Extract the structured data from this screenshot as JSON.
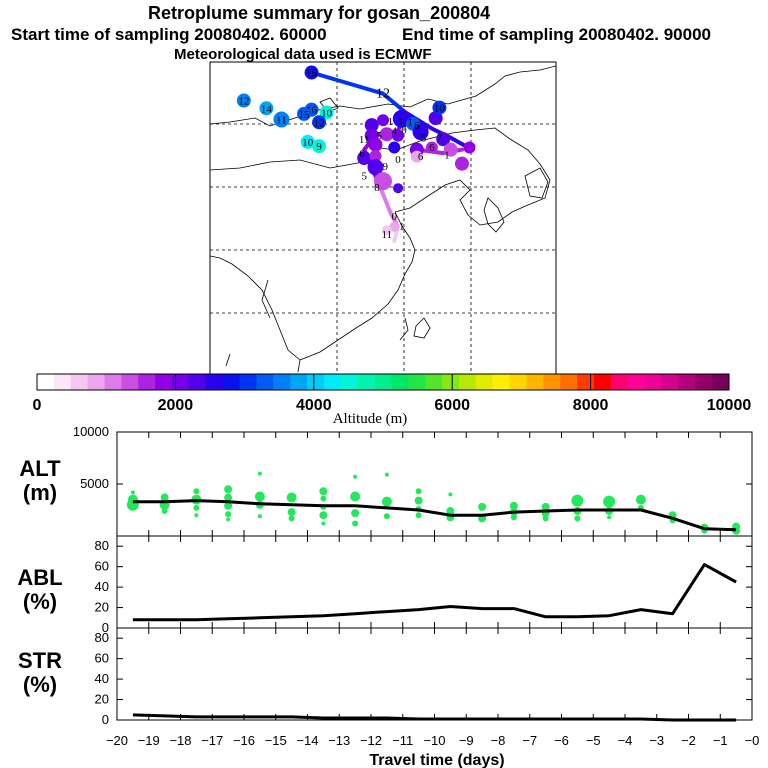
{
  "header": {
    "title": "Retroplume summary for gosan_200804",
    "start_label": "Start time of sampling 20080402. 60000",
    "end_label": "End time of sampling 20080402. 90000",
    "met_label": "Meteorological data used is ECMWF"
  },
  "colorbar": {
    "tick_labels": [
      "0",
      "2000",
      "4000",
      "6000",
      "8000",
      "10000"
    ],
    "title": "Altitude (m)",
    "range": [
      0,
      10000
    ],
    "colors": [
      "#ffffff",
      "#fde6f8",
      "#f5c8f2",
      "#eba6ee",
      "#dc7ce8",
      "#c84ee4",
      "#ae22e2",
      "#9200e6",
      "#7400e8",
      "#5000ea",
      "#2a00ee",
      "#0a10f2",
      "#0034f4",
      "#005af4",
      "#0080f4",
      "#00a6f6",
      "#00ccf8",
      "#00eaf8",
      "#00f6d8",
      "#00f4b0",
      "#00ee8c",
      "#00e868",
      "#20e646",
      "#52e62a",
      "#84e814",
      "#b6ea06",
      "#e2ec00",
      "#fff000",
      "#ffd400",
      "#ffb400",
      "#ff9400",
      "#ff6e00",
      "#ff3c00",
      "#ff0000",
      "#ff0070",
      "#ff0096",
      "#f0009a",
      "#d4008e",
      "#b4007c",
      "#940068",
      "#74005a"
    ]
  },
  "map": {
    "labels": [
      {
        "text": "12",
        "lon": 95.5,
        "lat": 53.5,
        "alt": 3600
      },
      {
        "text": "14",
        "lon": 98.5,
        "lat": 52.4,
        "alt": 3800
      },
      {
        "text": "16",
        "lon": 104.5,
        "lat": 52.2,
        "alt": 3200
      },
      {
        "text": "15",
        "lon": 103.5,
        "lat": 51.6,
        "alt": 3300
      },
      {
        "text": "10",
        "lon": 106.5,
        "lat": 51.8,
        "alt": 4500
      },
      {
        "text": "11",
        "lon": 100.5,
        "lat": 50.8,
        "alt": 3500
      },
      {
        "text": "12",
        "lon": 105.5,
        "lat": 50.4,
        "alt": 3000
      },
      {
        "text": "10",
        "lon": 104.0,
        "lat": 47.6,
        "alt": 4200
      },
      {
        "text": "9",
        "lon": 105.5,
        "lat": 47.0,
        "alt": 4600
      },
      {
        "text": "16",
        "lon": 104.5,
        "lat": 57.5,
        "alt": 2900
      },
      {
        "text": "12",
        "lon": 114.0,
        "lat": 54.5,
        "alt": 0
      },
      {
        "text": "10",
        "lon": 121.5,
        "lat": 52.5,
        "alt": 3000
      }
    ],
    "paths": [
      {
        "alt": 3000,
        "points": [
          [
            104.5,
            57.5
          ],
          [
            114.0,
            54.5
          ],
          [
            117.0,
            51.8
          ]
        ]
      },
      {
        "alt": 2500,
        "points": [
          [
            117.0,
            51.8
          ],
          [
            120.5,
            49.5
          ],
          [
            123.0,
            48.2
          ],
          [
            125.0,
            47.0
          ]
        ]
      },
      {
        "alt": 1800,
        "points": [
          [
            117.0,
            51.8
          ],
          [
            116.0,
            49.2
          ],
          [
            113.0,
            48.5
          ],
          [
            111.5,
            46.5
          ],
          [
            112.5,
            44.0
          ],
          [
            113.5,
            41.5
          ]
        ]
      },
      {
        "alt": 1200,
        "points": [
          [
            113.5,
            41.5
          ],
          [
            115.0,
            37.5
          ],
          [
            116.0,
            35.5
          ]
        ]
      },
      {
        "alt": 600,
        "points": [
          [
            116.0,
            35.5
          ],
          [
            115.5,
            33.5
          ]
        ]
      },
      {
        "alt": 1500,
        "points": [
          [
            118.5,
            46.5
          ],
          [
            122.0,
            46.0
          ],
          [
            124.5,
            46.5
          ]
        ]
      }
    ],
    "markers": [
      {
        "label": "",
        "lon": 100.5,
        "lat": 50.8,
        "alt": 3500,
        "size": 8
      },
      {
        "label": "",
        "lon": 103.5,
        "lat": 51.6,
        "alt": 3300,
        "size": 6
      },
      {
        "label": "",
        "lon": 112.5,
        "lat": 50.0,
        "alt": 2300,
        "size": 7
      },
      {
        "label": "",
        "lon": 114.0,
        "lat": 50.7,
        "alt": 2100,
        "size": 6
      },
      {
        "label": "",
        "lon": 116.5,
        "lat": 50.9,
        "alt": 2600,
        "size": 9
      },
      {
        "label": "",
        "lon": 118.0,
        "lat": 50.2,
        "alt": 3300,
        "size": 7
      },
      {
        "label": "",
        "lon": 119.0,
        "lat": 49.0,
        "alt": 2500,
        "size": 8
      },
      {
        "label": "",
        "lon": 121.0,
        "lat": 51.0,
        "alt": 2300,
        "size": 7
      },
      {
        "label": "",
        "lon": 112.5,
        "lat": 48.5,
        "alt": 2100,
        "size": 7
      },
      {
        "label": "",
        "lon": 114.5,
        "lat": 48.7,
        "alt": 1600,
        "size": 7
      },
      {
        "label": "",
        "lon": 116.0,
        "lat": 48.5,
        "alt": 2000,
        "size": 6
      },
      {
        "label": "",
        "lon": 113.0,
        "lat": 47.2,
        "alt": 1800,
        "size": 7
      },
      {
        "label": "",
        "lon": 115.5,
        "lat": 46.8,
        "alt": 2600,
        "size": 6
      },
      {
        "label": "",
        "lon": 111.5,
        "lat": 45.3,
        "alt": 2200,
        "size": 7
      },
      {
        "label": "",
        "lon": 113.0,
        "lat": 45.6,
        "alt": 1500,
        "size": 6
      },
      {
        "label": "",
        "lon": 113.0,
        "lat": 44.0,
        "alt": 2300,
        "size": 8
      },
      {
        "label": "",
        "lon": 114.0,
        "lat": 42.0,
        "alt": 1300,
        "size": 9
      },
      {
        "label": "",
        "lon": 118.5,
        "lat": 46.5,
        "alt": 2100,
        "size": 7
      },
      {
        "label": "",
        "lon": 120.5,
        "lat": 46.8,
        "alt": 1700,
        "size": 6
      },
      {
        "label": "",
        "lon": 122.0,
        "lat": 48.0,
        "alt": 2400,
        "size": 7
      },
      {
        "label": "",
        "lon": 123.0,
        "lat": 46.5,
        "alt": 1400,
        "size": 7
      },
      {
        "label": "",
        "lon": 125.5,
        "lat": 46.8,
        "alt": 1800,
        "size": 6
      },
      {
        "label": "",
        "lon": 124.5,
        "lat": 44.5,
        "alt": 1700,
        "size": 7
      },
      {
        "label": "",
        "lon": 118.5,
        "lat": 45.5,
        "alt": 800,
        "size": 6
      },
      {
        "label": "",
        "lon": 116.0,
        "lat": 41.0,
        "alt": 2200,
        "size": 5
      },
      {
        "label": "",
        "lon": 115.5,
        "lat": 35.5,
        "alt": 900,
        "size": 5
      },
      {
        "label": "",
        "lon": 114.5,
        "lat": 35.0,
        "alt": 700,
        "size": 5
      }
    ],
    "marker_numbers": [
      {
        "text": "5",
        "lon": 113.5,
        "lat": 48.6
      },
      {
        "text": "4",
        "lon": 115.5,
        "lat": 49.2
      },
      {
        "text": "1",
        "lon": 116.4,
        "lat": 50.6
      },
      {
        "text": "0",
        "lon": 116.8,
        "lat": 49.4
      },
      {
        "text": "6",
        "lon": 118.5,
        "lat": 50.0
      },
      {
        "text": "5",
        "lon": 119.4,
        "lat": 48.2
      },
      {
        "text": "7",
        "lon": 121.5,
        "lat": 48.2
      },
      {
        "text": "6",
        "lon": 120.5,
        "lat": 46.9
      },
      {
        "text": "0",
        "lon": 116.0,
        "lat": 45.2
      },
      {
        "text": "1",
        "lon": 122.5,
        "lat": 45.8
      },
      {
        "text": "9",
        "lon": 114.3,
        "lat": 44.2
      },
      {
        "text": "8",
        "lon": 113.2,
        "lat": 41.2
      },
      {
        "text": "5",
        "lon": 111.5,
        "lat": 42.8
      },
      {
        "text": "0",
        "lon": 115.5,
        "lat": 37.0
      },
      {
        "text": "1",
        "lon": 116.5,
        "lat": 35.6
      },
      {
        "text": "11",
        "lon": 114.5,
        "lat": 34.5
      },
      {
        "text": "1",
        "lon": 115.0,
        "lat": 50.6
      },
      {
        "text": "1",
        "lon": 117.6,
        "lat": 50.5
      },
      {
        "text": "11",
        "lon": 111.5,
        "lat": 48.0
      },
      {
        "text": "6",
        "lon": 111.2,
        "lat": 46.0
      },
      {
        "text": "6",
        "lon": 119.0,
        "lat": 45.6
      }
    ]
  },
  "chart_data": [
    {
      "type": "scatter",
      "panel": "ALT",
      "ylabel": "ALT (m)",
      "ylim": [
        0,
        10000
      ],
      "yticks": [
        0,
        5000,
        10000
      ],
      "mean_line": {
        "x": [
          -19.5,
          -18.5,
          -17.5,
          -16.5,
          -15.5,
          -14.5,
          -13.5,
          -12.5,
          -11.5,
          -10.5,
          -9.5,
          -8.5,
          -7.5,
          -6.5,
          -5.5,
          -4.5,
          -3.5,
          -2.5,
          -1.5,
          -0.5
        ],
        "y": [
          3300,
          3300,
          3400,
          3300,
          3100,
          3000,
          2900,
          2900,
          2700,
          2500,
          2000,
          2000,
          2300,
          2400,
          2500,
          2500,
          2500,
          1700,
          700,
          600
        ]
      },
      "points": [
        {
          "x": -19.5,
          "y": 3000,
          "s": 6
        },
        {
          "x": -19.5,
          "y": 3500,
          "s": 5
        },
        {
          "x": -19.5,
          "y": 4200,
          "s": 2
        },
        {
          "x": -18.5,
          "y": 3000,
          "s": 5
        },
        {
          "x": -18.5,
          "y": 3700,
          "s": 4
        },
        {
          "x": -18.5,
          "y": 2400,
          "s": 3
        },
        {
          "x": -17.5,
          "y": 3500,
          "s": 5
        },
        {
          "x": -17.5,
          "y": 4300,
          "s": 3
        },
        {
          "x": -17.5,
          "y": 2700,
          "s": 3
        },
        {
          "x": -17.5,
          "y": 2000,
          "s": 2
        },
        {
          "x": -16.5,
          "y": 4500,
          "s": 4
        },
        {
          "x": -16.5,
          "y": 3700,
          "s": 4
        },
        {
          "x": -16.5,
          "y": 2900,
          "s": 4
        },
        {
          "x": -16.5,
          "y": 2100,
          "s": 3
        },
        {
          "x": -16.5,
          "y": 1600,
          "s": 2
        },
        {
          "x": -15.5,
          "y": 6000,
          "s": 2
        },
        {
          "x": -15.5,
          "y": 3800,
          "s": 5
        },
        {
          "x": -15.5,
          "y": 3000,
          "s": 4
        },
        {
          "x": -15.5,
          "y": 1900,
          "s": 2
        },
        {
          "x": -14.5,
          "y": 3700,
          "s": 5
        },
        {
          "x": -14.5,
          "y": 2300,
          "s": 4
        },
        {
          "x": -14.5,
          "y": 1700,
          "s": 3
        },
        {
          "x": -13.5,
          "y": 4300,
          "s": 4
        },
        {
          "x": -13.5,
          "y": 3600,
          "s": 3
        },
        {
          "x": -13.5,
          "y": 2800,
          "s": 3
        },
        {
          "x": -13.5,
          "y": 2000,
          "s": 4
        },
        {
          "x": -13.5,
          "y": 1200,
          "s": 2
        },
        {
          "x": -12.5,
          "y": 5700,
          "s": 2
        },
        {
          "x": -12.5,
          "y": 3800,
          "s": 5
        },
        {
          "x": -12.5,
          "y": 2200,
          "s": 4
        },
        {
          "x": -12.5,
          "y": 1200,
          "s": 3
        },
        {
          "x": -11.5,
          "y": 5900,
          "s": 2
        },
        {
          "x": -11.5,
          "y": 3300,
          "s": 5
        },
        {
          "x": -11.5,
          "y": 1900,
          "s": 3
        },
        {
          "x": -10.5,
          "y": 4300,
          "s": 3
        },
        {
          "x": -10.5,
          "y": 3400,
          "s": 4
        },
        {
          "x": -10.5,
          "y": 2600,
          "s": 3
        },
        {
          "x": -10.5,
          "y": 2000,
          "s": 3
        },
        {
          "x": -9.5,
          "y": 4000,
          "s": 2
        },
        {
          "x": -9.5,
          "y": 2400,
          "s": 4
        },
        {
          "x": -9.5,
          "y": 1800,
          "s": 4
        },
        {
          "x": -8.5,
          "y": 2800,
          "s": 4
        },
        {
          "x": -8.5,
          "y": 1700,
          "s": 4
        },
        {
          "x": -7.5,
          "y": 2900,
          "s": 4
        },
        {
          "x": -7.5,
          "y": 2300,
          "s": 4
        },
        {
          "x": -7.5,
          "y": 1800,
          "s": 3
        },
        {
          "x": -6.5,
          "y": 2800,
          "s": 4
        },
        {
          "x": -6.5,
          "y": 2200,
          "s": 4
        },
        {
          "x": -6.5,
          "y": 1700,
          "s": 3
        },
        {
          "x": -5.5,
          "y": 3400,
          "s": 6
        },
        {
          "x": -5.5,
          "y": 2400,
          "s": 4
        },
        {
          "x": -5.5,
          "y": 1700,
          "s": 3
        },
        {
          "x": -4.5,
          "y": 3300,
          "s": 6
        },
        {
          "x": -4.5,
          "y": 2400,
          "s": 4
        },
        {
          "x": -4.5,
          "y": 1800,
          "s": 2
        },
        {
          "x": -3.5,
          "y": 3500,
          "s": 5
        },
        {
          "x": -3.5,
          "y": 2700,
          "s": 3
        },
        {
          "x": -2.5,
          "y": 2000,
          "s": 4
        },
        {
          "x": -2.5,
          "y": 1500,
          "s": 3
        },
        {
          "x": -1.5,
          "y": 800,
          "s": 4
        },
        {
          "x": -1.5,
          "y": 500,
          "s": 3
        },
        {
          "x": -0.5,
          "y": 900,
          "s": 4
        },
        {
          "x": -0.5,
          "y": 500,
          "s": 4
        }
      ]
    },
    {
      "type": "line",
      "panel": "ABL",
      "ylabel": "ABL (%)",
      "ylim": [
        0,
        90
      ],
      "yticks": [
        0,
        20,
        40,
        60,
        80
      ],
      "x": [
        -19.5,
        -18.5,
        -17.5,
        -16.5,
        -15.5,
        -14.5,
        -13.5,
        -12.5,
        -11.5,
        -10.5,
        -9.5,
        -8.5,
        -7.5,
        -6.5,
        -5.5,
        -4.5,
        -3.5,
        -2.5,
        -1.5,
        -0.5
      ],
      "y": [
        8,
        8,
        8,
        9,
        10,
        11,
        12,
        14,
        16,
        18,
        21,
        19,
        19,
        11,
        11,
        12,
        18,
        14,
        62,
        45
      ]
    },
    {
      "type": "line",
      "panel": "STR",
      "ylabel": "STR (%)",
      "ylim": [
        0,
        90
      ],
      "yticks": [
        0,
        20,
        40,
        60,
        80
      ],
      "x": [
        -19.5,
        -18.5,
        -17.5,
        -16.5,
        -15.5,
        -14.5,
        -13.5,
        -12.5,
        -11.5,
        -10.5,
        -9.5,
        -8.5,
        -7.5,
        -6.5,
        -5.5,
        -4.5,
        -3.5,
        -2.5,
        -1.5,
        -0.5
      ],
      "y": [
        5,
        4,
        3,
        3,
        3,
        3,
        2,
        2,
        2,
        1,
        1,
        1,
        1,
        1,
        1,
        1,
        1,
        0,
        0,
        0
      ]
    }
  ],
  "xaxis": {
    "label": "Travel time (days)",
    "ticks": [
      "−20",
      "−19",
      "−18",
      "−17",
      "−16",
      "−15",
      "−14",
      "−13",
      "−12",
      "−11",
      "−10",
      "−9",
      "−8",
      "−7",
      "−6",
      "−5",
      "−4",
      "−3",
      "−2",
      "−1",
      "−0"
    ],
    "range": [
      -20,
      0
    ]
  },
  "panel_labels": {
    "alt": [
      "ALT",
      "(m)"
    ],
    "abl": [
      "ABL",
      "(%)"
    ],
    "str": [
      "STR",
      "(%)"
    ]
  }
}
